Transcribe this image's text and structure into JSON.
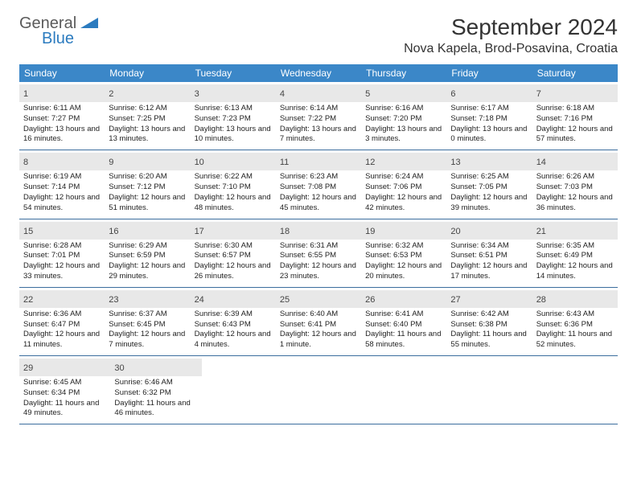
{
  "logo": {
    "general": "General",
    "blue": "Blue"
  },
  "title": "September 2024",
  "location": "Nova Kapela, Brod-Posavina, Croatia",
  "colors": {
    "header_bg": "#3b87c8",
    "header_text": "#ffffff",
    "daynum_bg": "#e8e8e8",
    "border": "#3b6e9e",
    "logo_gray": "#5a5a5a",
    "logo_blue": "#2b7bbf"
  },
  "day_names": [
    "Sunday",
    "Monday",
    "Tuesday",
    "Wednesday",
    "Thursday",
    "Friday",
    "Saturday"
  ],
  "weeks": [
    [
      {
        "n": "1",
        "sr": "6:11 AM",
        "ss": "7:27 PM",
        "dl": "13 hours and 16 minutes."
      },
      {
        "n": "2",
        "sr": "6:12 AM",
        "ss": "7:25 PM",
        "dl": "13 hours and 13 minutes."
      },
      {
        "n": "3",
        "sr": "6:13 AM",
        "ss": "7:23 PM",
        "dl": "13 hours and 10 minutes."
      },
      {
        "n": "4",
        "sr": "6:14 AM",
        "ss": "7:22 PM",
        "dl": "13 hours and 7 minutes."
      },
      {
        "n": "5",
        "sr": "6:16 AM",
        "ss": "7:20 PM",
        "dl": "13 hours and 3 minutes."
      },
      {
        "n": "6",
        "sr": "6:17 AM",
        "ss": "7:18 PM",
        "dl": "13 hours and 0 minutes."
      },
      {
        "n": "7",
        "sr": "6:18 AM",
        "ss": "7:16 PM",
        "dl": "12 hours and 57 minutes."
      }
    ],
    [
      {
        "n": "8",
        "sr": "6:19 AM",
        "ss": "7:14 PM",
        "dl": "12 hours and 54 minutes."
      },
      {
        "n": "9",
        "sr": "6:20 AM",
        "ss": "7:12 PM",
        "dl": "12 hours and 51 minutes."
      },
      {
        "n": "10",
        "sr": "6:22 AM",
        "ss": "7:10 PM",
        "dl": "12 hours and 48 minutes."
      },
      {
        "n": "11",
        "sr": "6:23 AM",
        "ss": "7:08 PM",
        "dl": "12 hours and 45 minutes."
      },
      {
        "n": "12",
        "sr": "6:24 AM",
        "ss": "7:06 PM",
        "dl": "12 hours and 42 minutes."
      },
      {
        "n": "13",
        "sr": "6:25 AM",
        "ss": "7:05 PM",
        "dl": "12 hours and 39 minutes."
      },
      {
        "n": "14",
        "sr": "6:26 AM",
        "ss": "7:03 PM",
        "dl": "12 hours and 36 minutes."
      }
    ],
    [
      {
        "n": "15",
        "sr": "6:28 AM",
        "ss": "7:01 PM",
        "dl": "12 hours and 33 minutes."
      },
      {
        "n": "16",
        "sr": "6:29 AM",
        "ss": "6:59 PM",
        "dl": "12 hours and 29 minutes."
      },
      {
        "n": "17",
        "sr": "6:30 AM",
        "ss": "6:57 PM",
        "dl": "12 hours and 26 minutes."
      },
      {
        "n": "18",
        "sr": "6:31 AM",
        "ss": "6:55 PM",
        "dl": "12 hours and 23 minutes."
      },
      {
        "n": "19",
        "sr": "6:32 AM",
        "ss": "6:53 PM",
        "dl": "12 hours and 20 minutes."
      },
      {
        "n": "20",
        "sr": "6:34 AM",
        "ss": "6:51 PM",
        "dl": "12 hours and 17 minutes."
      },
      {
        "n": "21",
        "sr": "6:35 AM",
        "ss": "6:49 PM",
        "dl": "12 hours and 14 minutes."
      }
    ],
    [
      {
        "n": "22",
        "sr": "6:36 AM",
        "ss": "6:47 PM",
        "dl": "12 hours and 11 minutes."
      },
      {
        "n": "23",
        "sr": "6:37 AM",
        "ss": "6:45 PM",
        "dl": "12 hours and 7 minutes."
      },
      {
        "n": "24",
        "sr": "6:39 AM",
        "ss": "6:43 PM",
        "dl": "12 hours and 4 minutes."
      },
      {
        "n": "25",
        "sr": "6:40 AM",
        "ss": "6:41 PM",
        "dl": "12 hours and 1 minute."
      },
      {
        "n": "26",
        "sr": "6:41 AM",
        "ss": "6:40 PM",
        "dl": "11 hours and 58 minutes."
      },
      {
        "n": "27",
        "sr": "6:42 AM",
        "ss": "6:38 PM",
        "dl": "11 hours and 55 minutes."
      },
      {
        "n": "28",
        "sr": "6:43 AM",
        "ss": "6:36 PM",
        "dl": "11 hours and 52 minutes."
      }
    ],
    [
      {
        "n": "29",
        "sr": "6:45 AM",
        "ss": "6:34 PM",
        "dl": "11 hours and 49 minutes."
      },
      {
        "n": "30",
        "sr": "6:46 AM",
        "ss": "6:32 PM",
        "dl": "11 hours and 46 minutes."
      },
      null,
      null,
      null,
      null,
      null
    ]
  ],
  "labels": {
    "sunrise": "Sunrise:",
    "sunset": "Sunset:",
    "daylight": "Daylight:"
  }
}
